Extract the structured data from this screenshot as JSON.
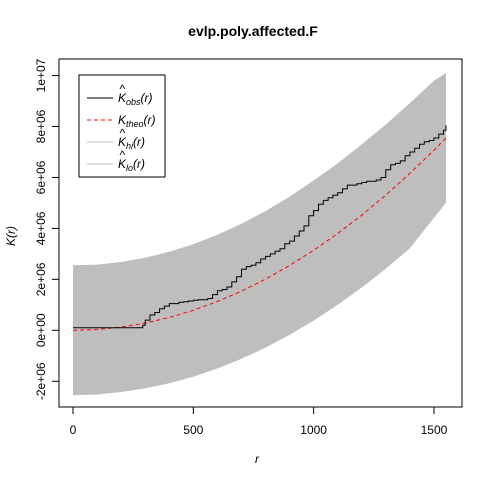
{
  "chart_data": {
    "type": "line",
    "title": "evlp.poly.affected.F",
    "xlabel": "r",
    "ylabel": "K(r)",
    "xlim": [
      0,
      1550
    ],
    "ylim": [
      -2000000,
      10000000
    ],
    "x_ticks": [
      0,
      500,
      1000,
      1500
    ],
    "y_ticks": [
      -2000000,
      0,
      2000000,
      4000000,
      6000000,
      8000000,
      10000000
    ],
    "y_tick_labels": [
      "-2e+06",
      "0e+00",
      "2e+06",
      "4e+06",
      "6e+06",
      "8e+06",
      "1e+07"
    ],
    "legend_position": "top-left",
    "colors": {
      "obs": "#000000",
      "theo": "#ff0000",
      "envelope": "#bebebe"
    },
    "legend": [
      {
        "key": "obs",
        "hat": true,
        "base": "K",
        "sub": "obs",
        "arg": "(r)",
        "style": "solid",
        "color": "#000000"
      },
      {
        "key": "theo",
        "hat": false,
        "base": "K",
        "sub": "theo",
        "arg": "(r)",
        "style": "dashed",
        "color": "#ff0000"
      },
      {
        "key": "hi",
        "hat": true,
        "base": "K",
        "sub": "hi",
        "arg": "(r)",
        "style": "solid",
        "color": "#bebebe"
      },
      {
        "key": "lo",
        "hat": true,
        "base": "K",
        "sub": "lo",
        "arg": "(r)",
        "style": "solid",
        "color": "#bebebe"
      }
    ],
    "series": {
      "hi": {
        "x": [
          0,
          100,
          200,
          300,
          400,
          500,
          600,
          700,
          800,
          900,
          1000,
          1100,
          1200,
          1300,
          1400,
          1500,
          1550
        ],
        "y": [
          2550000,
          2580000,
          2680000,
          2850000,
          3080000,
          3380000,
          3750000,
          4180000,
          4680000,
          5250000,
          5880000,
          6550000,
          7300000,
          8080000,
          8920000,
          9800000,
          10100000
        ]
      },
      "lo": {
        "x": [
          0,
          100,
          200,
          300,
          400,
          500,
          600,
          700,
          800,
          900,
          1000,
          1100,
          1200,
          1300,
          1400,
          1500,
          1550
        ],
        "y": [
          -2550000,
          -2520000,
          -2420000,
          -2280000,
          -2080000,
          -1820000,
          -1500000,
          -1120000,
          -680000,
          -180000,
          380000,
          1000000,
          1680000,
          2420000,
          3220000,
          4420000,
          5000000
        ]
      },
      "theo": {
        "x": [
          0,
          100,
          200,
          300,
          400,
          500,
          600,
          700,
          800,
          900,
          1000,
          1100,
          1200,
          1300,
          1400,
          1500,
          1550
        ],
        "y": [
          0,
          31000,
          126000,
          283000,
          503000,
          785000,
          1131000,
          1539000,
          2011000,
          2545000,
          3142000,
          3801000,
          4524000,
          5309000,
          6158000,
          7069000,
          7548000
        ]
      },
      "obs": {
        "x": [
          0,
          280,
          290,
          300,
          320,
          340,
          360,
          380,
          400,
          420,
          440,
          460,
          480,
          500,
          520,
          540,
          560,
          580,
          600,
          620,
          640,
          660,
          680,
          700,
          720,
          740,
          760,
          780,
          800,
          820,
          840,
          860,
          880,
          900,
          920,
          940,
          960,
          980,
          1000,
          1020,
          1040,
          1060,
          1080,
          1100,
          1120,
          1140,
          1160,
          1180,
          1200,
          1220,
          1240,
          1260,
          1280,
          1300,
          1320,
          1340,
          1360,
          1380,
          1400,
          1420,
          1440,
          1460,
          1480,
          1500,
          1520,
          1540,
          1550
        ],
        "y": [
          100000,
          100000,
          200000,
          400000,
          600000,
          700000,
          850000,
          950000,
          1050000,
          1050000,
          1100000,
          1120000,
          1150000,
          1180000,
          1200000,
          1200000,
          1250000,
          1400000,
          1550000,
          1600000,
          1700000,
          1900000,
          2100000,
          2400000,
          2500000,
          2550000,
          2650000,
          2800000,
          2900000,
          3000000,
          3100000,
          3200000,
          3400000,
          3500000,
          3700000,
          3900000,
          4100000,
          4500000,
          4700000,
          4950000,
          5100000,
          5200000,
          5300000,
          5400000,
          5550000,
          5700000,
          5700000,
          5750000,
          5800000,
          5850000,
          5850000,
          5900000,
          6000000,
          6300000,
          6500000,
          6550000,
          6650000,
          6850000,
          7000000,
          7150000,
          7300000,
          7400000,
          7450000,
          7550000,
          7700000,
          7850000,
          8050000
        ]
      }
    }
  }
}
